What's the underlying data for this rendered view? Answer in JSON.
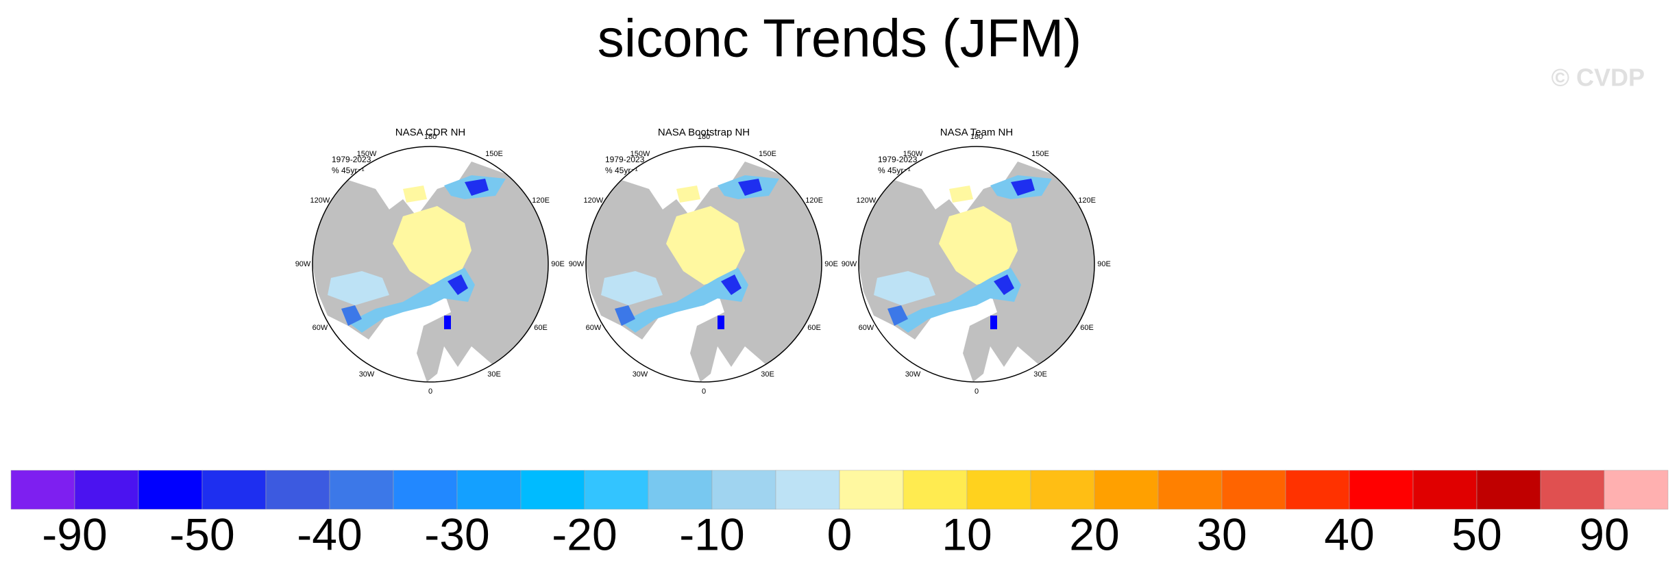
{
  "title": "siconc Trends (JFM)",
  "watermark": "© CVDP",
  "panels": [
    {
      "title": "NASA CDR NH",
      "period": "1979-2023",
      "units": "% 45yr⁻¹",
      "lon_labels": [
        "180",
        "150E",
        "120E",
        "90E",
        "60E",
        "30E",
        "0",
        "30W",
        "60W",
        "90W",
        "120W",
        "150W"
      ]
    },
    {
      "title": "NASA Bootstrap NH",
      "period": "1979-2023",
      "units": "% 45yr⁻¹",
      "lon_labels": [
        "180",
        "150E",
        "120E",
        "90E",
        "60E",
        "30E",
        "0",
        "30W",
        "60W",
        "90W",
        "120W",
        "150W"
      ]
    },
    {
      "title": "NASA Team NH",
      "period": "1979-2023",
      "units": "% 45yr⁻¹",
      "lon_labels": [
        "180",
        "150E",
        "120E",
        "90E",
        "60E",
        "30E",
        "0",
        "30W",
        "60W",
        "90W",
        "120W",
        "150W"
      ]
    }
  ],
  "colorbar": {
    "colors": [
      "#7e1ff0",
      "#4b13f0",
      "#0000ff",
      "#1e2ff0",
      "#3c5ae0",
      "#3c78e8",
      "#2288ff",
      "#14a0ff",
      "#00bbff",
      "#33c4ff",
      "#78c8f0",
      "#a0d4f0",
      "#bde2f5",
      "#fff8a0",
      "#ffeb50",
      "#ffd21e",
      "#ffbe14",
      "#ffa000",
      "#ff8000",
      "#ff6400",
      "#ff3200",
      "#ff0000",
      "#e00000",
      "#c00000",
      "#e05050",
      "#ffb0b0"
    ],
    "labels": [
      -90,
      -50,
      -40,
      -30,
      -20,
      -10,
      0,
      10,
      20,
      30,
      40,
      50,
      90
    ]
  }
}
